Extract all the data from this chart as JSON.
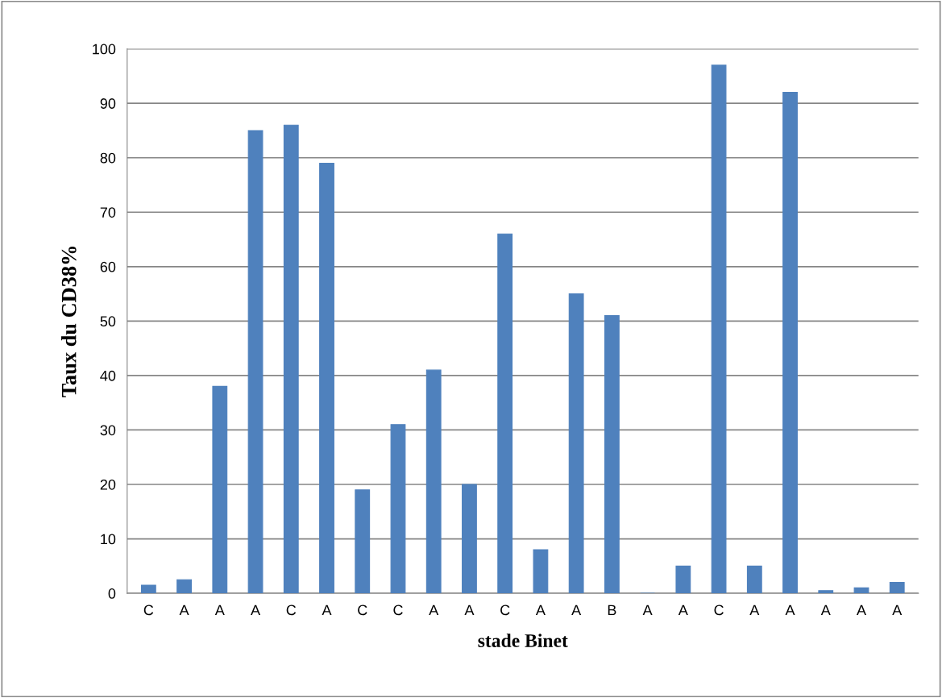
{
  "chart_data": {
    "type": "bar",
    "xlabel": "stade Binet",
    "ylabel": "Taux du CD38%",
    "categories": [
      "C",
      "A",
      "A",
      "A",
      "C",
      "A",
      "C",
      "C",
      "A",
      "A",
      "C",
      "A",
      "A",
      "B",
      "A",
      "A",
      "C",
      "A",
      "A",
      "A",
      "A",
      "A"
    ],
    "values": [
      1.5,
      2.5,
      38,
      85,
      86,
      79,
      19,
      31,
      41,
      20,
      66,
      8,
      55,
      51,
      0,
      5,
      97,
      5,
      92,
      0.5,
      1,
      2
    ],
    "color": "#4f81bd",
    "ylim": [
      0,
      100
    ],
    "yticks": [
      0,
      10,
      20,
      30,
      40,
      50,
      60,
      70,
      80,
      90,
      100
    ],
    "grid": "y"
  }
}
